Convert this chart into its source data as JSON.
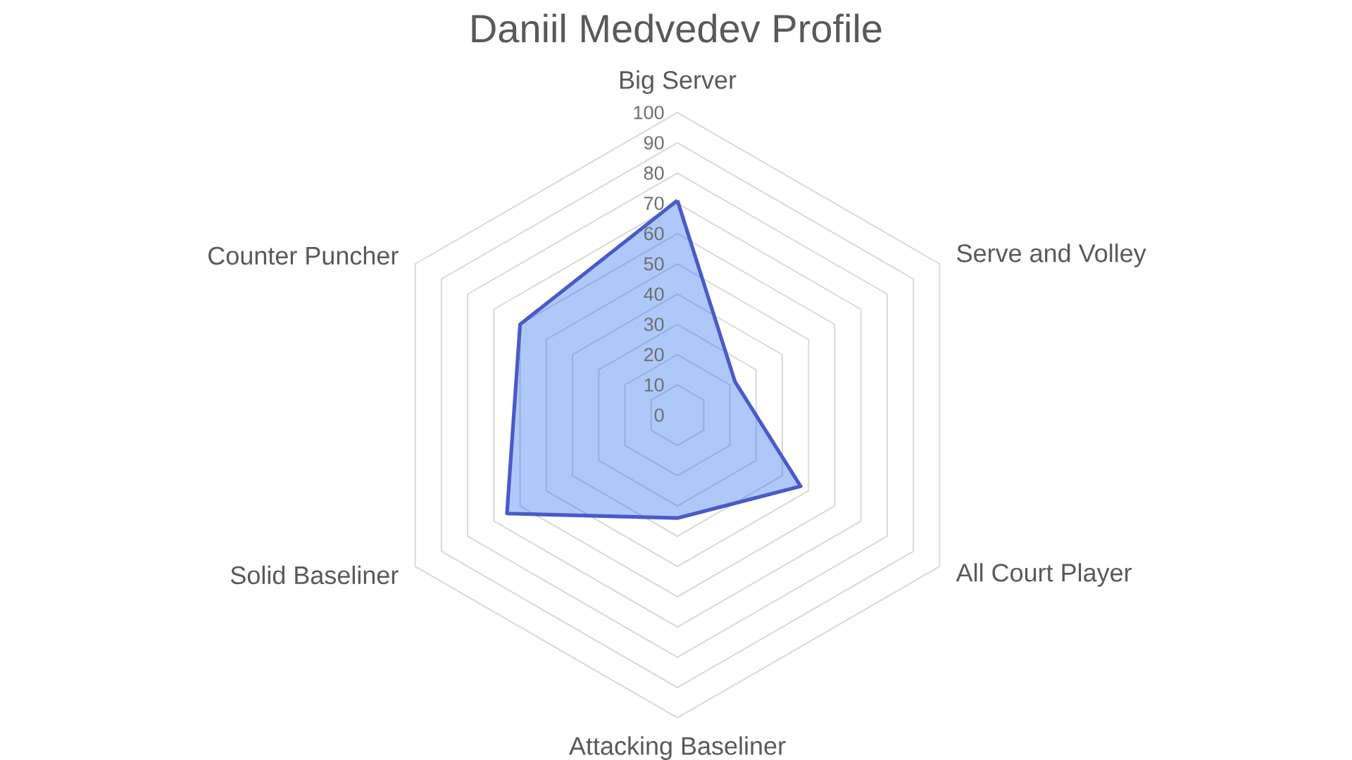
{
  "chart_data": {
    "type": "radar",
    "title": "Daniil Medvedev Profile",
    "categories": [
      "Big Server",
      "Serve and Volley",
      "All Court Player",
      "Attacking Baseliner",
      "Solid Baseliner",
      "Counter Puncher"
    ],
    "series": [
      {
        "color": "#4a5ac8",
        "values": [
          71,
          22,
          47,
          34,
          65,
          60
        ]
      }
    ],
    "ylim": [
      0,
      100
    ],
    "yticks": [
      0,
      10,
      20,
      30,
      40,
      50,
      60,
      70,
      80,
      90,
      100
    ],
    "grid": true
  }
}
